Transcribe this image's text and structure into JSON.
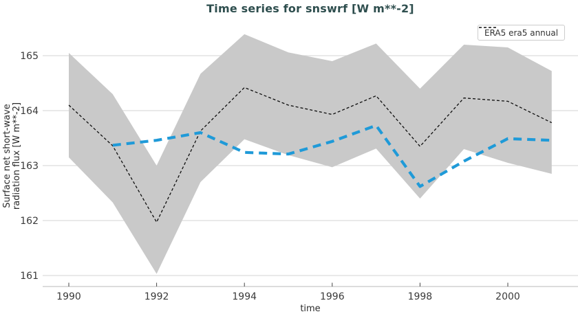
{
  "header": {
    "title": "Time series for snswrf [W m**-2]"
  },
  "legend": {
    "entries": [
      {
        "label": "ERA5 era5 annual",
        "line_style": "dashed"
      }
    ]
  },
  "colors": {
    "background": "#ffffff",
    "title": "#2e4e4e",
    "band": "#c9c9c9",
    "grid": "#dcdcdc",
    "spine": "#d0d0d0",
    "tick": "#444444",
    "tick_label": "#3a3a3a",
    "axis_label": "#2b2b2b",
    "era5_line": "#0d0d0d",
    "smoothed_line": "#1f9ad8",
    "legend_border": "#cccccc",
    "legend_text": "#333333"
  },
  "chart_data": {
    "type": "line",
    "title": "Time series for snswrf [W m**-2]",
    "xlabel": "time",
    "ylabel_lines": [
      "Surface net short-wave",
      "radiation flux [W m**-2]"
    ],
    "x_ticks": [
      1990,
      1992,
      1994,
      1996,
      1998,
      2000
    ],
    "y_ticks": [
      161,
      162,
      163,
      164,
      165
    ],
    "xlim": [
      1989.4,
      2001.6
    ],
    "ylim": [
      160.8,
      165.45
    ],
    "grid": "horizontal",
    "legend_position": "upper right",
    "series": [
      {
        "name": "ERA5 era5 annual",
        "style": "thin-black-dashed",
        "x": [
          1990,
          1991,
          1992,
          1993,
          1994,
          1995,
          1996,
          1997,
          1998,
          1999,
          2000,
          2001
        ],
        "values": [
          164.1,
          163.36,
          161.97,
          163.63,
          164.42,
          164.1,
          163.93,
          164.27,
          163.35,
          164.23,
          164.17,
          163.78
        ]
      },
      {
        "name": "smoothed-unlabeled",
        "style": "thick-blue-dashed",
        "x": [
          1991,
          1992,
          1993,
          1994,
          1995,
          1996,
          1997,
          1998,
          1999,
          2000,
          2001
        ],
        "values": [
          163.37,
          163.46,
          163.6,
          163.24,
          163.21,
          163.44,
          163.73,
          162.62,
          163.08,
          163.49,
          163.46
        ]
      }
    ],
    "band": {
      "name": "uncertainty-band",
      "x": [
        1990,
        1991,
        1992,
        1993,
        1994,
        1995,
        1996,
        1997,
        1998,
        1999,
        2000,
        2001
      ],
      "upper": [
        165.05,
        164.3,
        163.0,
        164.67,
        165.39,
        165.06,
        164.9,
        165.22,
        164.4,
        165.2,
        165.15,
        164.72
      ],
      "lower": [
        163.15,
        162.33,
        161.03,
        162.7,
        163.48,
        163.19,
        162.97,
        163.31,
        162.4,
        163.3,
        163.05,
        162.85
      ]
    }
  }
}
